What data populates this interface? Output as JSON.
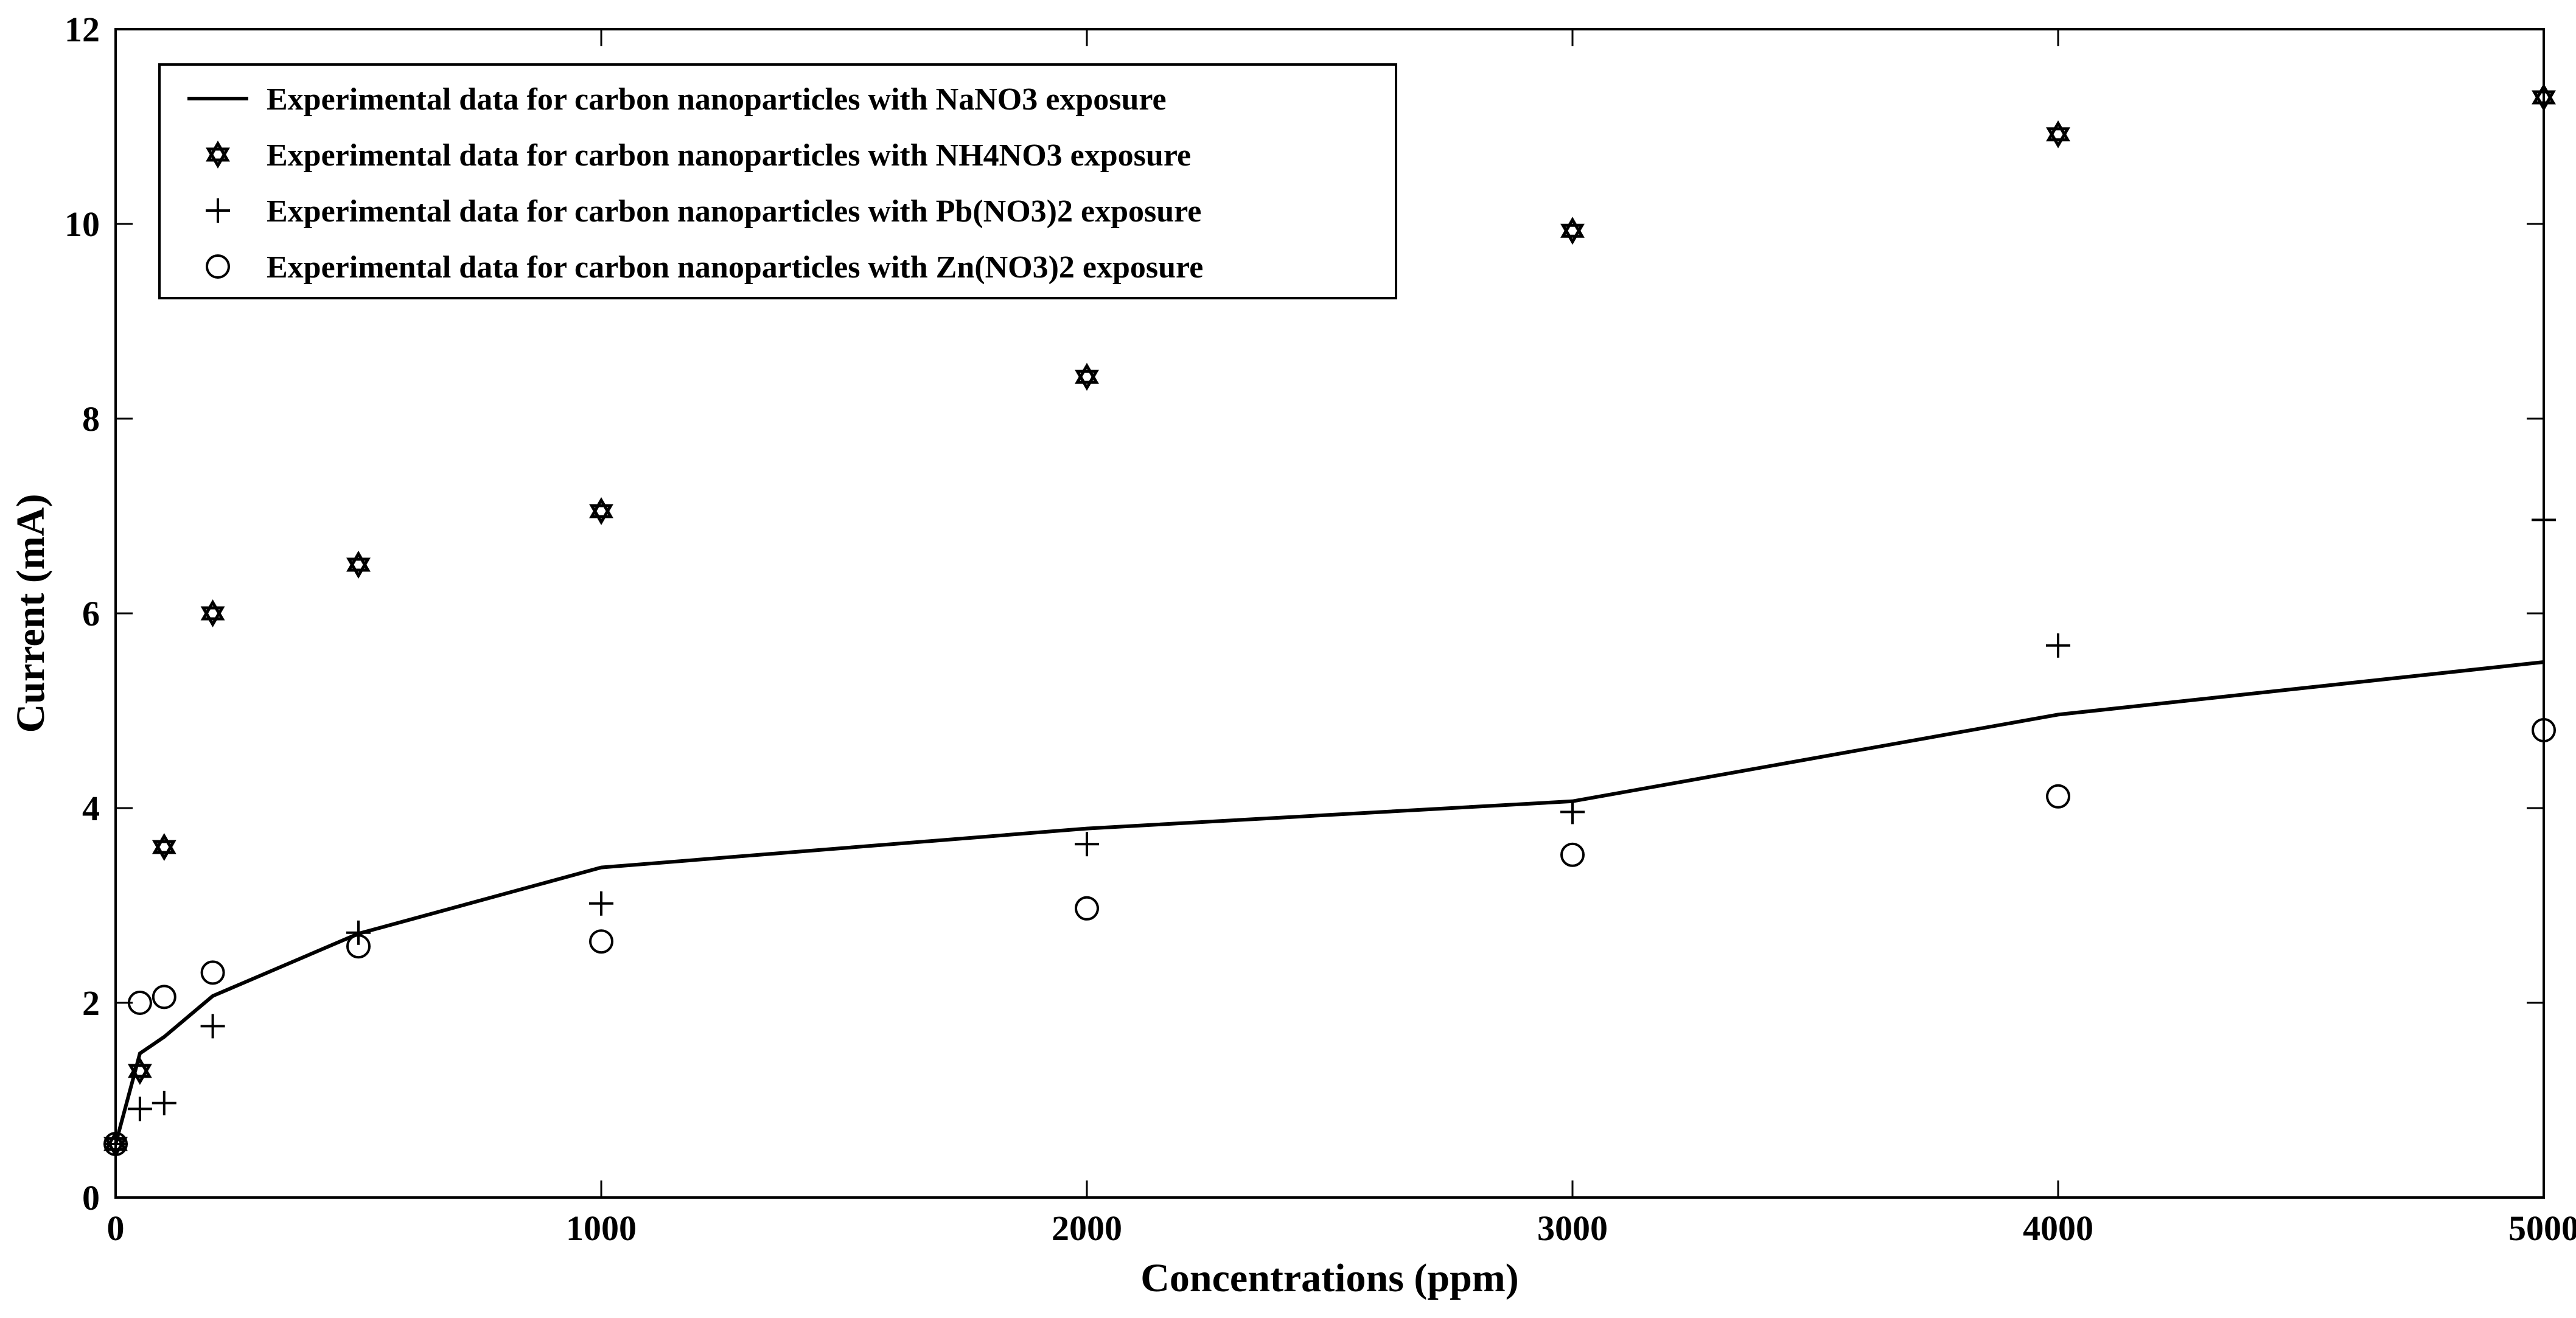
{
  "chart_data": {
    "type": "scatter",
    "title": "",
    "xlabel": "Concentrations (ppm)",
    "ylabel": "Current (mA)",
    "xlim": [
      0,
      5000
    ],
    "ylim": [
      0,
      12
    ],
    "xticks": [
      0,
      1000,
      2000,
      3000,
      4000,
      5000
    ],
    "yticks": [
      0,
      2,
      4,
      6,
      8,
      10,
      12
    ],
    "grid": false,
    "legend_position": "top-left",
    "series": [
      {
        "name": "Experimental data for carbon nanoparticles with NaNO3 exposure",
        "style": "line",
        "x": [
          0,
          50,
          100,
          200,
          500,
          1000,
          2000,
          3000,
          4000,
          5000
        ],
        "y": [
          0.55,
          1.48,
          1.65,
          2.07,
          2.71,
          3.39,
          3.79,
          4.07,
          4.96,
          5.5
        ]
      },
      {
        "name": "Experimental data for carbon nanoparticles with NH4NO3 exposure",
        "style": "hexagram",
        "x": [
          0,
          50,
          100,
          200,
          500,
          1000,
          2000,
          3000,
          4000,
          5000
        ],
        "y": [
          0.55,
          1.3,
          3.6,
          6.0,
          6.5,
          7.05,
          8.43,
          9.93,
          10.92,
          11.3
        ]
      },
      {
        "name": "Experimental data for carbon nanoparticles with Pb(NO3)2 exposure",
        "style": "plus",
        "x": [
          0,
          50,
          100,
          200,
          500,
          1000,
          2000,
          3000,
          4000,
          5000
        ],
        "y": [
          0.55,
          0.91,
          0.97,
          1.76,
          2.72,
          3.02,
          3.63,
          3.96,
          5.67,
          6.96
        ]
      },
      {
        "name": "Experimental data for carbon nanoparticles with Zn(NO3)2 exposure",
        "style": "circle",
        "x": [
          0,
          50,
          100,
          200,
          500,
          1000,
          2000,
          3000,
          4000,
          5000
        ],
        "y": [
          0.55,
          2.0,
          2.06,
          2.31,
          2.58,
          2.63,
          2.97,
          3.52,
          4.12,
          4.8
        ]
      }
    ]
  }
}
